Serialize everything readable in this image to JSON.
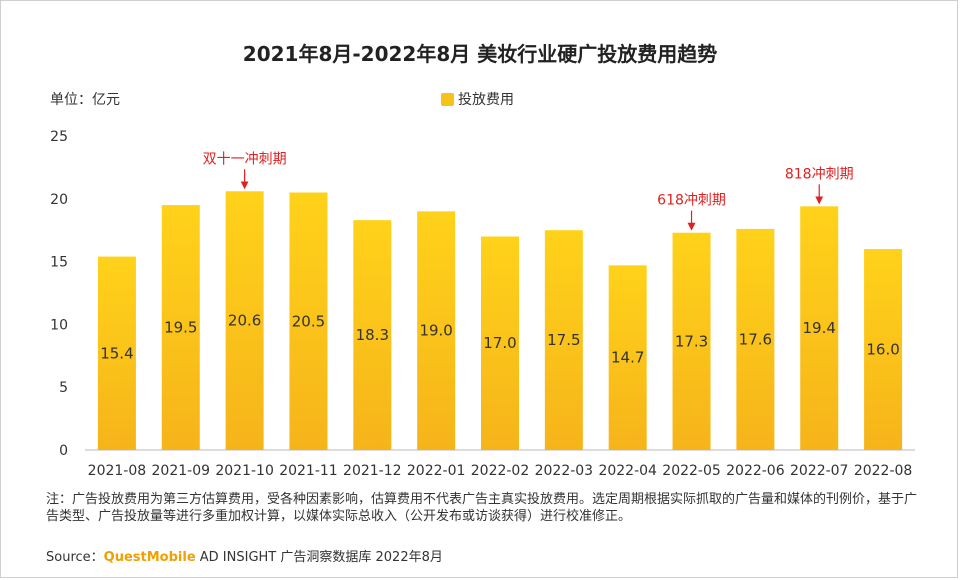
{
  "title": "2021年8月-2022年8月 美妆行业硬广投放费用趋势",
  "unit_label": "单位：亿元",
  "note": "注：广告投放费用为第三方估算费用，受各种因素影响，估算费用不代表广告主真实投放费用。选定周期根据实际抓取的广告量和媒体的刊例价，基于广告类型、广告投放量等进行多重加权计算，以媒体实际总收入（公开发布或访谈获得）进行校准修正。",
  "source": {
    "prefix": "Source：",
    "brand": "QuestMobile",
    "rest": " AD INSIGHT 广告洞察数据库 2022年8月"
  },
  "colors": {
    "bar_top": "#ffd21a",
    "bar_bottom": "#f6b41a",
    "annotation": "#e02020",
    "axis": "#bbbbbb"
  },
  "chart_data": {
    "type": "bar",
    "categories": [
      "2021-08",
      "2021-09",
      "2021-10",
      "2021-11",
      "2021-12",
      "2022-01",
      "2022-02",
      "2022-03",
      "2022-04",
      "2022-05",
      "2022-06",
      "2022-07",
      "2022-08"
    ],
    "series": [
      {
        "name": "投放费用",
        "values": [
          15.4,
          19.5,
          20.6,
          20.5,
          18.3,
          19.0,
          17.0,
          17.5,
          14.7,
          17.3,
          17.6,
          19.4,
          16.0
        ]
      }
    ],
    "data_labels": [
      "15.4",
      "19.5",
      "20.6",
      "20.5",
      "18.3",
      "19.0",
      "17.0",
      "17.5",
      "14.7",
      "17.3",
      "17.6",
      "19.4",
      "16.0"
    ],
    "ylim": [
      0,
      25
    ],
    "yticks": [
      0,
      5,
      10,
      15,
      20,
      25
    ],
    "grid": false,
    "legend": "top-center",
    "annotations": [
      {
        "text": "双十一冲刺期",
        "category": "2021-10"
      },
      {
        "text": "618冲刺期",
        "category": "2022-05"
      },
      {
        "text": "818冲刺期",
        "category": "2022-07"
      }
    ]
  }
}
